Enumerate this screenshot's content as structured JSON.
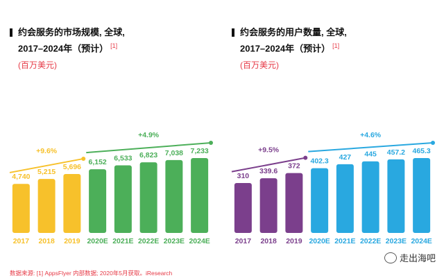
{
  "source_note": "数据来源: [1] AppsFlyer 内部数据; 2020年5月获取。iResearch",
  "watermark": "走出海吧",
  "chart_data": [
    {
      "type": "bar",
      "title_line1": "约会服务的市场规模, 全球,",
      "title_line2": "2017–2024年（预计）",
      "ref": "[1]",
      "unit": "(百万美元)",
      "categories": [
        "2017",
        "2018",
        "2019",
        "2020E",
        "2021E",
        "2022E",
        "2023E",
        "2024E"
      ],
      "values": [
        4740,
        5215,
        5696,
        6152,
        6533,
        6823,
        7038,
        7233
      ],
      "value_labels": [
        "4,740",
        "5,215",
        "5,696",
        "6,152",
        "6,533",
        "6,823",
        "7,038",
        "7,233"
      ],
      "ylim": [
        0,
        7233
      ],
      "colors": [
        "#f7c12b",
        "#f7c12b",
        "#f7c12b",
        "#4caf59",
        "#4caf59",
        "#4caf59",
        "#4caf59",
        "#4caf59"
      ],
      "trends": [
        {
          "label": "+9.6%",
          "from_category": "2017",
          "to_category": "2019",
          "color": "#f7c12b"
        },
        {
          "label": "+4.9%",
          "from_category": "2020E",
          "to_category": "2024E",
          "color": "#4caf59"
        }
      ]
    },
    {
      "type": "bar",
      "title_line1": "约会服务的用户数量, 全球,",
      "title_line2": "2017–2024年（预计）",
      "ref": "[1]",
      "unit": "(百万美元)",
      "categories": [
        "2017",
        "2018",
        "2019",
        "2020E",
        "2021E",
        "2022E",
        "2023E",
        "2024E"
      ],
      "values": [
        310,
        339.6,
        372,
        402.3,
        427,
        445,
        457.2,
        465.3
      ],
      "value_labels": [
        "310",
        "339.6",
        "372",
        "402.3",
        "427",
        "445",
        "457.2",
        "465.3"
      ],
      "ylim": [
        0,
        465.3
      ],
      "colors": [
        "#7b3f8c",
        "#7b3f8c",
        "#7b3f8c",
        "#29a8e0",
        "#29a8e0",
        "#29a8e0",
        "#29a8e0",
        "#29a8e0"
      ],
      "trends": [
        {
          "label": "+9.5%",
          "from_category": "2017",
          "to_category": "2019",
          "color": "#7b3f8c"
        },
        {
          "label": "+4.6%",
          "from_category": "2020E",
          "to_category": "2024E",
          "color": "#29a8e0"
        }
      ]
    }
  ]
}
